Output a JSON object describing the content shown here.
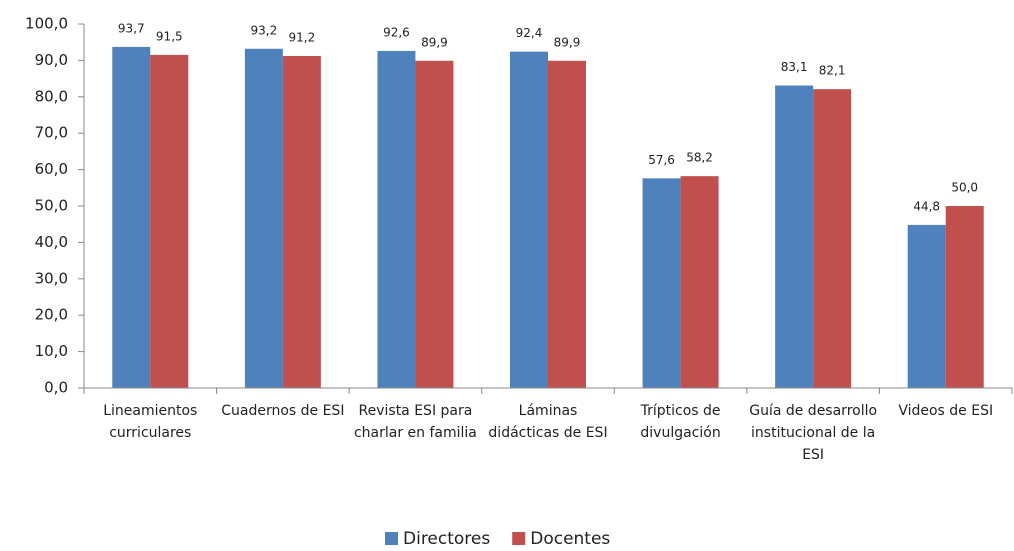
{
  "chart_data": {
    "type": "bar",
    "categories": [
      "Lineamientos curriculares",
      "Cuadernos de ESI",
      "Revista ESI para charlar en familia",
      "Láminas didácticas de ESI",
      "Trípticos de divulgación",
      "Guía de desarrollo institucional de la ESI",
      "Videos de ESI"
    ],
    "series": [
      {
        "name": "Directores",
        "color": "#4f81bd",
        "values": [
          93.7,
          93.2,
          92.6,
          92.4,
          57.6,
          83.1,
          44.8
        ],
        "value_labels": [
          "93,7",
          "93,2",
          "92,6",
          "92,4",
          "57,6",
          "83,1",
          "44,8"
        ]
      },
      {
        "name": "Docentes",
        "color": "#c0504d",
        "values": [
          91.5,
          91.2,
          89.9,
          89.9,
          58.2,
          82.1,
          50.0
        ],
        "value_labels": [
          "91,5",
          "91,2",
          "89,9",
          "89,9",
          "58,2",
          "82,1",
          "50,0"
        ]
      }
    ],
    "ylim": [
      0,
      100
    ],
    "yticks": [
      {
        "value": 0,
        "label": "0,0"
      },
      {
        "value": 10,
        "label": "10,0"
      },
      {
        "value": 20,
        "label": "20,0"
      },
      {
        "value": 30,
        "label": "30,0"
      },
      {
        "value": 40,
        "label": "40,0"
      },
      {
        "value": 50,
        "label": "50,0"
      },
      {
        "value": 60,
        "label": "60,0"
      },
      {
        "value": 70,
        "label": "70,0"
      },
      {
        "value": 80,
        "label": "80,0"
      },
      {
        "value": 90,
        "label": "90,0"
      },
      {
        "value": 100,
        "label": "100,0"
      }
    ],
    "grid": false,
    "legend": "bottom"
  }
}
